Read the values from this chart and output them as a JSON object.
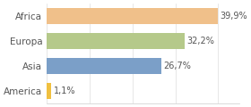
{
  "categories": [
    "America",
    "Asia",
    "Europa",
    "Africa"
  ],
  "values": [
    1.1,
    26.7,
    32.2,
    39.9
  ],
  "labels": [
    "1,1%",
    "26,7%",
    "32,2%",
    "39,9%"
  ],
  "bar_colors": [
    "#f0c040",
    "#7b9fc8",
    "#b5c98a",
    "#f0c08a"
  ],
  "background_color": "#ffffff",
  "xlim": [
    0,
    45
  ],
  "bar_height": 0.65,
  "label_fontsize": 7.0,
  "tick_fontsize": 7.5
}
